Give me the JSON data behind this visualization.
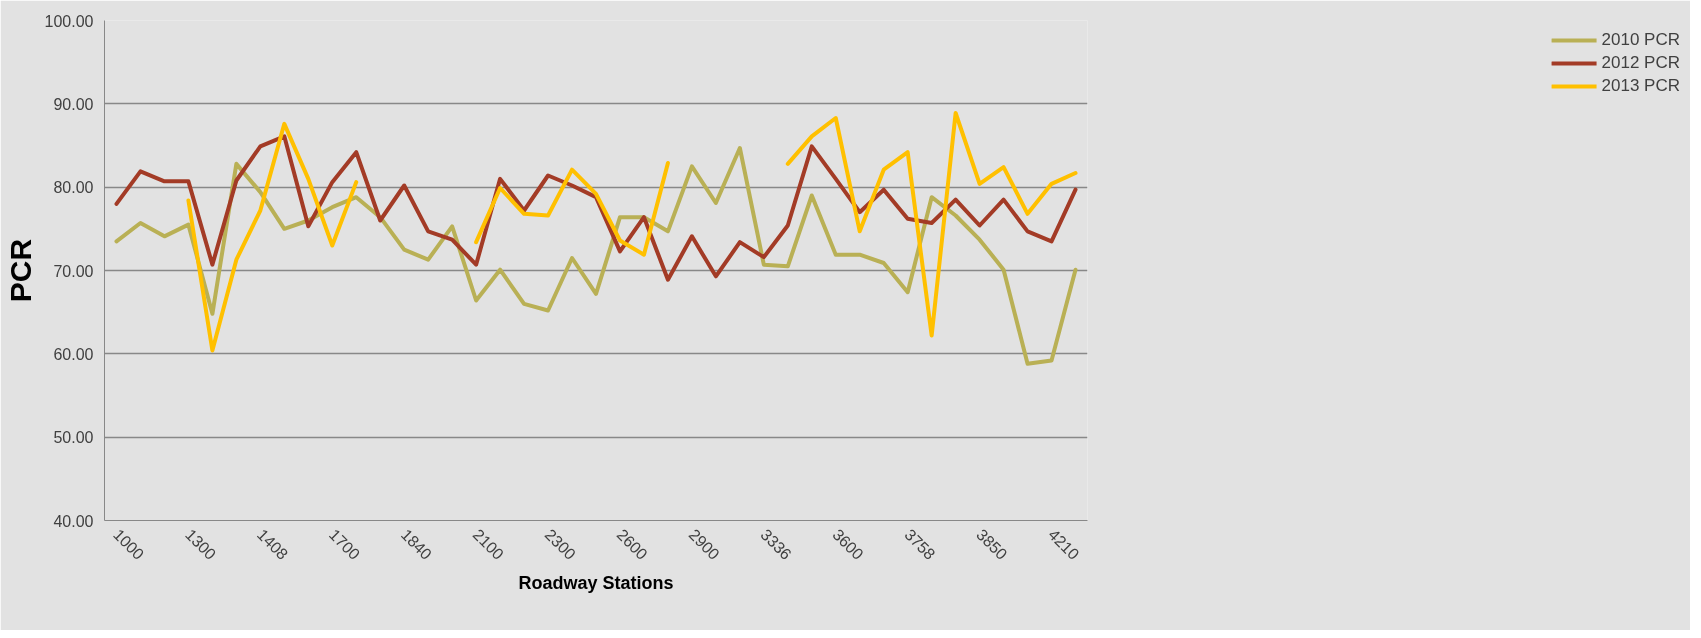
{
  "chart_data": {
    "type": "line",
    "xlabel": "Roadway Stations",
    "ylabel": "PCR",
    "categories": [
      "1000",
      null,
      null,
      "1300",
      null,
      null,
      "1408",
      null,
      null,
      "1700",
      null,
      null,
      "1840",
      null,
      null,
      "2100",
      null,
      null,
      "2300",
      null,
      null,
      "2600",
      null,
      null,
      "2900",
      null,
      null,
      "3336",
      null,
      null,
      "3600",
      null,
      null,
      "3758",
      null,
      null,
      "3850",
      null,
      null,
      "4210",
      null
    ],
    "series": [
      {
        "name": "2010 PCR",
        "color": "#b9b055",
        "values": [
          73.5,
          75.7,
          74.1,
          75.5,
          64.8,
          82.8,
          79.4,
          75.0,
          76.0,
          77.6,
          78.8,
          76.4,
          72.5,
          71.3,
          75.3,
          66.4,
          70.1,
          66.0,
          65.2,
          71.5,
          67.2,
          76.4,
          76.4,
          74.7,
          82.5,
          78.1,
          84.7,
          70.7,
          70.5,
          79.0,
          71.9,
          71.9,
          70.9,
          67.4,
          78.8,
          76.6,
          73.7,
          70.1,
          58.8,
          59.2,
          70.1
        ]
      },
      {
        "name": "2012 PCR",
        "color": "#a33b26",
        "values": [
          78.0,
          81.9,
          80.7,
          80.7,
          70.7,
          80.8,
          84.9,
          86.1,
          75.3,
          80.6,
          84.2,
          76.0,
          80.2,
          74.7,
          73.7,
          70.7,
          81.0,
          77.2,
          81.4,
          80.2,
          78.8,
          72.3,
          76.4,
          68.9,
          74.1,
          69.3,
          73.4,
          71.6,
          75.4,
          84.9,
          81.0,
          77.0,
          79.7,
          76.2,
          75.7,
          78.5,
          75.4,
          78.5,
          74.7,
          73.5,
          79.7
        ]
      },
      {
        "name": "2013 PCR",
        "color": "#ffc000",
        "values": [
          null,
          null,
          null,
          78.4,
          60.4,
          71.3,
          77.2,
          87.6,
          81.0,
          73.0,
          80.6,
          null,
          null,
          null,
          null,
          73.4,
          79.9,
          76.8,
          76.6,
          82.1,
          79.2,
          73.6,
          71.9,
          82.9,
          null,
          null,
          null,
          null,
          82.8,
          86.1,
          88.3,
          74.7,
          82.1,
          84.2,
          62.2,
          88.9,
          80.4,
          82.4,
          76.8,
          80.4,
          81.7
        ]
      }
    ],
    "ylim": [
      40,
      100
    ],
    "yticks": [
      {
        "value": 40,
        "label": "40.00"
      },
      {
        "value": 50,
        "label": "50.00"
      },
      {
        "value": 60,
        "label": "60.00"
      },
      {
        "value": 70,
        "label": "70.00"
      },
      {
        "value": 80,
        "label": "80.00"
      },
      {
        "value": 90,
        "label": "90.00"
      },
      {
        "value": 100,
        "label": "100.00"
      }
    ],
    "grid": "y",
    "legend": "right",
    "marker": "none",
    "line_style": "solid"
  }
}
